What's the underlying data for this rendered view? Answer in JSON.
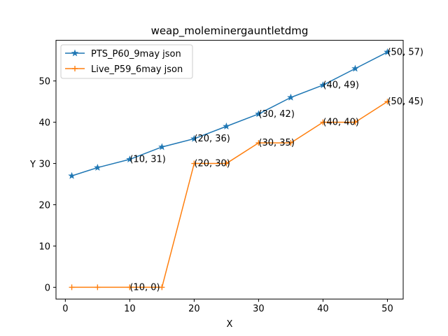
{
  "chart_data": {
    "type": "line",
    "title": "weap_moleminergauntletdmg",
    "xlabel": "X",
    "ylabel": "Y",
    "xlim": [
      -1.45,
      52.45
    ],
    "ylim": [
      -2.85,
      59.85
    ],
    "xticks": [
      0,
      10,
      20,
      30,
      40,
      50
    ],
    "yticks": [
      0,
      10,
      20,
      30,
      40,
      50
    ],
    "grid": false,
    "legend_position": "top-left",
    "series": [
      {
        "name": "PTS_P60_9may json",
        "color": "#1f77b4",
        "marker": "star",
        "x": [
          1,
          5,
          10,
          15,
          20,
          25,
          30,
          35,
          40,
          45,
          50
        ],
        "y": [
          27,
          29,
          31,
          34,
          36,
          39,
          42,
          46,
          49,
          53,
          57
        ]
      },
      {
        "name": "Live_P59_6may json",
        "color": "#ff7f0e",
        "marker": "plus",
        "x": [
          1,
          5,
          10,
          15,
          20,
          25,
          30,
          35,
          40,
          45,
          50
        ],
        "y": [
          0,
          0,
          0,
          0,
          30,
          30,
          35,
          35,
          40,
          40,
          45
        ]
      }
    ],
    "annotations": [
      {
        "text": "(10, 31)",
        "x": 10,
        "y": 31
      },
      {
        "text": "(20, 36)",
        "x": 20,
        "y": 36
      },
      {
        "text": "(30, 42)",
        "x": 30,
        "y": 42
      },
      {
        "text": "(40, 49)",
        "x": 40,
        "y": 49
      },
      {
        "text": "(50, 57)",
        "x": 50,
        "y": 57
      },
      {
        "text": "(10, 0)",
        "x": 10,
        "y": 0
      },
      {
        "text": "(20, 30)",
        "x": 20,
        "y": 30
      },
      {
        "text": "(30, 35)",
        "x": 30,
        "y": 35
      },
      {
        "text": "(40, 40)",
        "x": 40,
        "y": 40
      },
      {
        "text": "(50, 45)",
        "x": 50,
        "y": 45
      }
    ]
  }
}
